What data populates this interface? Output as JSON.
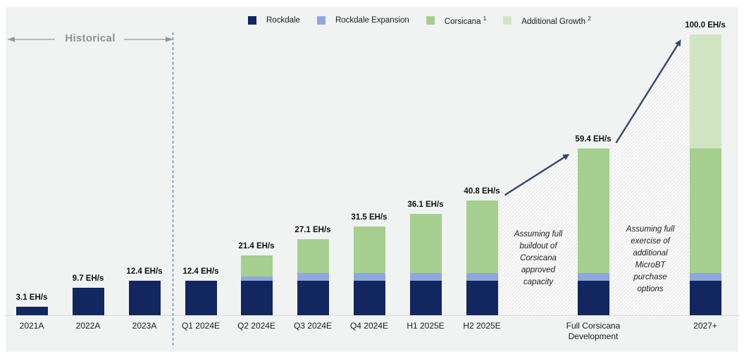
{
  "header": {
    "historical_label": "Historical"
  },
  "chart_data": {
    "type": "bar",
    "stacked": true,
    "unit": "EH/s",
    "title": "",
    "legend_position": "top-center",
    "gridlines": false,
    "ylim": [
      0,
      100
    ],
    "categories": [
      "2021A",
      "2022A",
      "2023A",
      "Q1 2024E",
      "Q2 2024E",
      "Q3 2024E",
      "Q4 2024E",
      "H1 2025E",
      "H2 2025E",
      "Full Corsicana Development",
      "2027+"
    ],
    "historical_categories": [
      "2021A",
      "2022A",
      "2023A"
    ],
    "series": [
      {
        "name": "Rockdale",
        "sup": "",
        "color": "#12275f",
        "values": [
          3.1,
          9.7,
          12.4,
          12.4,
          12.4,
          12.4,
          12.4,
          12.4,
          12.4,
          12.4,
          12.4
        ]
      },
      {
        "name": "Rockdale Expansion",
        "sup": "",
        "color": "#8fa8dc",
        "values": [
          0,
          0,
          0,
          0,
          1.4,
          2.6,
          2.6,
          2.6,
          2.6,
          2.6,
          2.6
        ]
      },
      {
        "name": "Corsicana",
        "sup": "1",
        "color": "#a5cf8f",
        "values": [
          0,
          0,
          0,
          0,
          7.6,
          12.1,
          16.5,
          21.1,
          25.8,
          44.4,
          44.4
        ]
      },
      {
        "name": "Additional Growth",
        "sup": "2",
        "color": "#d2e5c3",
        "values": [
          0,
          0,
          0,
          0,
          0,
          0,
          0,
          0,
          0,
          0,
          40.6
        ]
      }
    ],
    "totals": [
      3.1,
      9.7,
      12.4,
      12.4,
      21.4,
      27.1,
      31.5,
      36.1,
      40.8,
      59.4,
      100.0
    ],
    "bar_labels": [
      "3.1 EH/s",
      "9.7 EH/s",
      "12.4 EH/s",
      "12.4 EH/s",
      "21.4 EH/s",
      "27.1 EH/s",
      "31.5 EH/s",
      "36.1 EH/s",
      "40.8 EH/s",
      "59.4 EH/s",
      "100.0 EH/s"
    ]
  },
  "annotations": {
    "corsicana_note": "Assuming full buildout of Corsicana approved capacity",
    "microbt_note": "Assuming full exercise of additional MicroBT purchase options"
  },
  "colors": {
    "rockdale": "#12275f",
    "rockdale_expansion": "#8fa8dc",
    "corsicana": "#a5cf8f",
    "additional_growth": "#d2e5c3",
    "growth_arrow": "#33496b",
    "forecast_separator": "#4c7bc0",
    "axis_line": "#d9d9d9",
    "historical_text": "#8d9196",
    "panel_background": "#f1f2f2"
  }
}
